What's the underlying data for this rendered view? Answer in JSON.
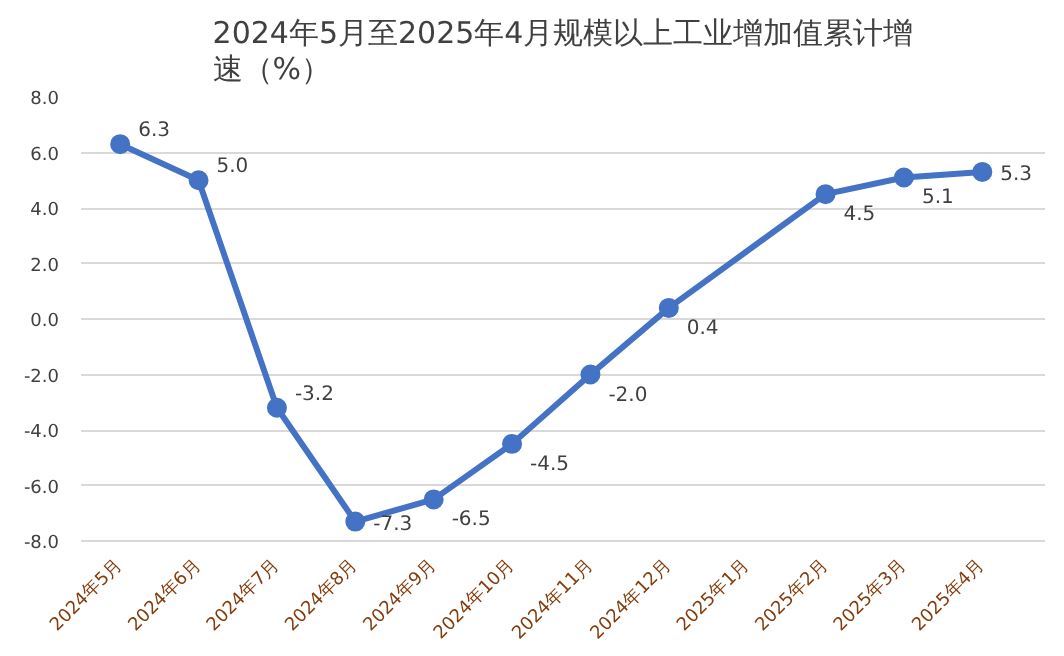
{
  "chart_data": {
    "type": "line",
    "title": "2024年5月至2025年4月规模以上工业增加值累计增速（%）",
    "categories": [
      "2024年5月",
      "2024年6月",
      "2024年7月",
      "2024年8月",
      "2024年9月",
      "2024年10月",
      "2024年11月",
      "2024年12月",
      "2025年1月",
      "2025年2月",
      "2025年3月",
      "2025年4月"
    ],
    "series": [
      {
        "color": "#4472c4",
        "values": [
          6.3,
          5.0,
          -3.2,
          -7.3,
          -6.5,
          -4.5,
          -2.0,
          0.4,
          null,
          4.5,
          5.1,
          5.3
        ],
        "value_labels": [
          "6.3",
          "5.0",
          "-3.2",
          "-7.3",
          "-6.5",
          "-4.5",
          "-2.0",
          "0.4",
          null,
          "4.5",
          "5.1",
          "5.3"
        ]
      }
    ],
    "ylim": [
      -8,
      8
    ],
    "yticks": [
      {
        "value": -8,
        "label": "-8.0"
      },
      {
        "value": -6,
        "label": "-6.0"
      },
      {
        "value": -4,
        "label": "-4.0"
      },
      {
        "value": -2,
        "label": "-2.0"
      },
      {
        "value": 0,
        "label": "0.0"
      },
      {
        "value": 2,
        "label": "2.0"
      },
      {
        "value": 4,
        "label": "4.0"
      },
      {
        "value": 6,
        "label": "6.0"
      },
      {
        "value": 8,
        "label": "8.0"
      }
    ],
    "grid": "y",
    "marker": "circle",
    "line_style": "solid"
  }
}
